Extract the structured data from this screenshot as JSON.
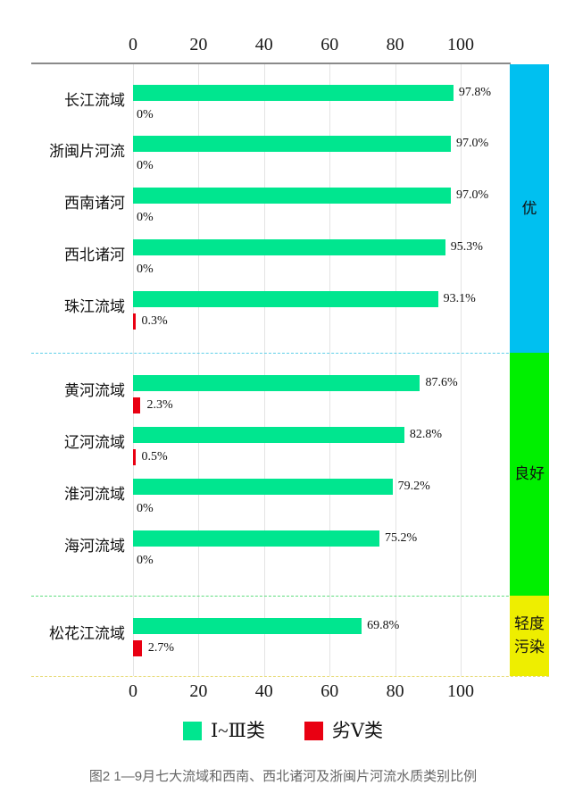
{
  "chart_data": {
    "type": "bar",
    "orientation": "horizontal",
    "title": "图2  1—9月七大流域和西南、西北诸河及浙闽片河流水质类别比例",
    "x_axis": {
      "ticks": [
        0,
        20,
        40,
        60,
        80,
        100
      ],
      "range": [
        0,
        100
      ],
      "grid": true
    },
    "categories": [
      "长江流域",
      "浙闽片河流",
      "西南诸河",
      "西北诸河",
      "珠江流域",
      "黄河流域",
      "辽河流域",
      "淮河流域",
      "海河流域",
      "松花江流域"
    ],
    "series": [
      {
        "name": "Ⅰ~Ⅲ类",
        "color": "#00e68f",
        "values": [
          97.8,
          97.0,
          97.0,
          95.3,
          93.1,
          87.6,
          82.8,
          79.2,
          75.2,
          69.8
        ],
        "labels": [
          "97.8%",
          "97.0%",
          "97.0%",
          "95.3%",
          "93.1%",
          "87.6%",
          "82.8%",
          "79.2%",
          "75.2%",
          "69.8%"
        ]
      },
      {
        "name": "劣Ⅴ类",
        "color": "#e90012",
        "values": [
          0,
          0,
          0,
          0,
          0.3,
          2.3,
          0.5,
          0,
          0,
          2.7
        ],
        "labels": [
          "0%",
          "0%",
          "0%",
          "0%",
          "0.3%",
          "2.3%",
          "0.5%",
          "0%",
          "0%",
          "2.7%"
        ]
      }
    ],
    "bands": [
      {
        "label_lines": [
          "优"
        ],
        "color": "#00c0f0",
        "dash_color": "#5fcfe8",
        "row_span": [
          0,
          4
        ]
      },
      {
        "label_lines": [
          "良好"
        ],
        "color": "#00f000",
        "dash_color": "#5fdd7f",
        "row_span": [
          5,
          8
        ]
      },
      {
        "label_lines": [
          "轻度",
          "污染"
        ],
        "color": "#eeee00",
        "dash_color": "#e8dc7a",
        "row_span": [
          9,
          9
        ]
      }
    ],
    "legend": [
      {
        "label": "Ⅰ~Ⅲ类",
        "color": "#00e68f"
      },
      {
        "label": "劣Ⅴ类",
        "color": "#e90012"
      }
    ]
  },
  "caption": "图2  1—9月七大流域和西南、西北诸河及浙闽片河流水质类别比例"
}
